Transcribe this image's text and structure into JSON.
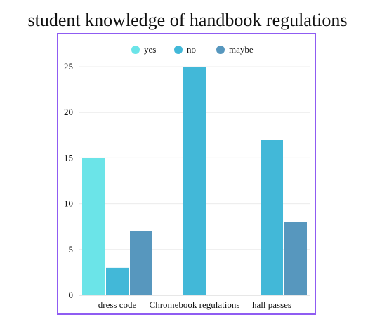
{
  "page": {
    "title": "student knowledge of handbook regulations"
  },
  "chart_data": {
    "type": "bar",
    "title": "student knowledge of handbook regulations",
    "xlabel": "",
    "ylabel": "",
    "categories": [
      "dress code",
      "Chromebook regulations",
      "hall passes"
    ],
    "series": [
      {
        "name": "yes",
        "color": "#6be4e8",
        "values": [
          15,
          0,
          0
        ]
      },
      {
        "name": "no",
        "color": "#42b8d8",
        "values": [
          3,
          25,
          17
        ]
      },
      {
        "name": "maybe",
        "color": "#5797be",
        "values": [
          7,
          0,
          8
        ]
      }
    ],
    "ylim": [
      0,
      25
    ],
    "yticks": [
      0,
      5,
      10,
      15,
      20,
      25
    ],
    "grid": true,
    "legend_position": "top-center",
    "frame_color": "#8f5cf2"
  }
}
